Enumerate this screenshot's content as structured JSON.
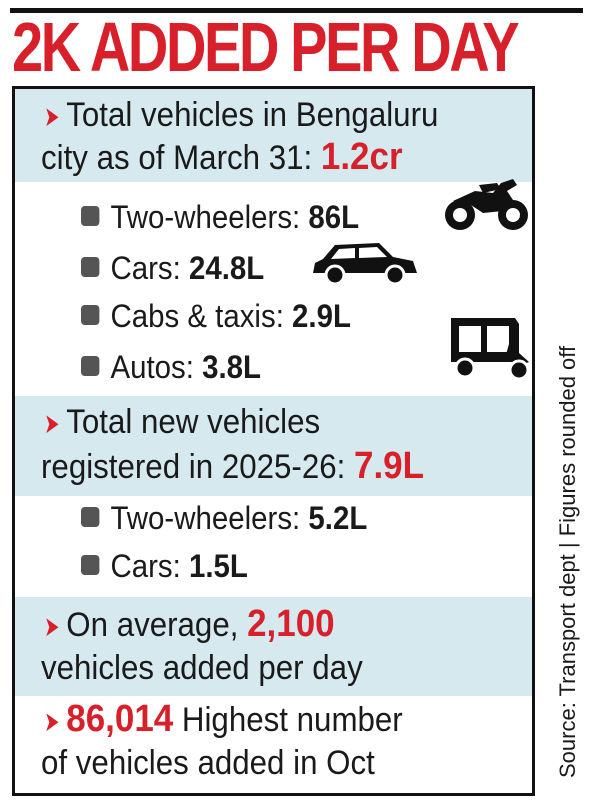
{
  "headline": "2K ADDED PER DAY",
  "arrow_glyph": "➤",
  "sections": {
    "total": {
      "line1": "Total vehicles in Bengaluru",
      "line2": "city as of March 31: ",
      "value": "1.2cr"
    },
    "total_items": [
      {
        "label": "Two-wheelers: ",
        "value": "86L"
      },
      {
        "label": "Cars: ",
        "value": "24.8L"
      },
      {
        "label": "Cabs & taxis: ",
        "value": "2.9L"
      },
      {
        "label": "Autos: ",
        "value": "3.8L"
      }
    ],
    "new": {
      "line1": "Total new vehicles",
      "line2": "registered in 2025-26: ",
      "value": "7.9L"
    },
    "new_items": [
      {
        "label": "Two-wheelers: ",
        "value": "5.2L"
      },
      {
        "label": "Cars: ",
        "value": "1.5L"
      }
    ],
    "average": {
      "pre": "On average, ",
      "value": "2,100",
      "line2": "vehicles added per day"
    },
    "highest": {
      "value": "86,014",
      "post": " Highest number",
      "line2": "of vehicles added in Oct"
    }
  },
  "source": "Source: Transport dept | Figures rounded off",
  "icons": [
    "motorcycle-icon",
    "car-icon",
    "auto-rickshaw-icon"
  ],
  "colors": {
    "accent": "#d8202a",
    "band": "#d6e9ef",
    "text": "#1a1a1a"
  }
}
